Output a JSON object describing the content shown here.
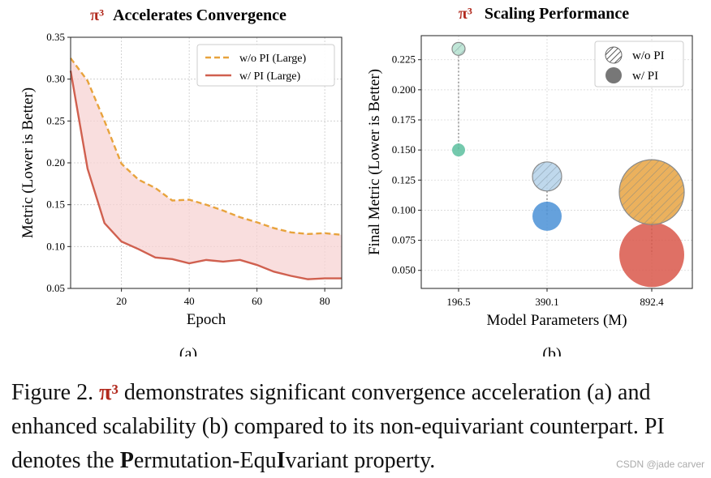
{
  "panel_a": {
    "title_pi": "π³",
    "title_text": "Accelerates Convergence",
    "sub_label": "(a)"
  },
  "panel_b": {
    "title_pi": "π³",
    "title_text": "Scaling Performance",
    "sub_label": "(b)"
  },
  "caption": {
    "fig": "Figure 2.",
    "pi": "π³",
    "t1": " demonstrates significant convergence acceleration (a) and enhanced scalability (b) compared to its non-equivariant counterpart. PI denotes the ",
    "b1": "P",
    "t2": "ermutation-Equ",
    "b2": "I",
    "t3": "variant property."
  },
  "watermark": "CSDN @jade carver",
  "colors": {
    "title_accent": "#b22a1e",
    "orange": "#e8a33d",
    "red": "#d0604f",
    "fill": "#f7d3d3",
    "teal": "#5cbf9f",
    "blue": "#4a90d6",
    "light_blue": "#b8d4ea",
    "bubble_orange": "#e9a94b",
    "bubble_red": "#d9574a"
  },
  "chart_data": [
    {
      "type": "line",
      "title": "π³ Accelerates Convergence",
      "xlabel": "Epoch",
      "ylabel": "Metric (Lower is Better)",
      "xlim": [
        5,
        85
      ],
      "ylim": [
        0.05,
        0.35
      ],
      "xticks": [
        20,
        40,
        60,
        80
      ],
      "yticks": [
        0.05,
        0.1,
        0.15,
        0.2,
        0.25,
        0.3,
        0.35
      ],
      "grid": true,
      "legend_position": "top-right",
      "series": [
        {
          "name": "w/o PI (Large)",
          "style": "dashed",
          "color": "#e8a33d",
          "x": [
            5,
            10,
            15,
            20,
            25,
            30,
            35,
            40,
            45,
            50,
            55,
            60,
            65,
            70,
            75,
            80,
            85
          ],
          "y": [
            0.325,
            0.298,
            0.25,
            0.199,
            0.18,
            0.17,
            0.155,
            0.156,
            0.15,
            0.143,
            0.135,
            0.129,
            0.122,
            0.117,
            0.115,
            0.116,
            0.114
          ]
        },
        {
          "name": "w/ PI (Large)",
          "style": "solid",
          "color": "#d0604f",
          "x": [
            5,
            10,
            15,
            20,
            25,
            30,
            35,
            40,
            45,
            50,
            55,
            60,
            65,
            70,
            75,
            80,
            85
          ],
          "y": [
            0.31,
            0.193,
            0.128,
            0.106,
            0.097,
            0.087,
            0.085,
            0.08,
            0.084,
            0.082,
            0.084,
            0.078,
            0.07,
            0.065,
            0.061,
            0.062,
            0.062
          ]
        }
      ]
    },
    {
      "type": "scatter",
      "title": "π³ Scaling Performance",
      "xlabel": "Model Parameters (M)",
      "ylabel": "Final Metric (Lower is Better)",
      "categories": [
        "196.5",
        "390.1",
        "892.4"
      ],
      "ylim": [
        0.035,
        0.245
      ],
      "yticks": [
        0.05,
        0.075,
        0.1,
        0.125,
        0.15,
        0.175,
        0.2,
        0.225
      ],
      "grid": true,
      "legend_position": "top-right",
      "legend": [
        {
          "label": "w/o PI",
          "style": "hatched"
        },
        {
          "label": "w/ PI",
          "style": "solid"
        }
      ],
      "series": [
        {
          "name": "w/o PI",
          "hatched": true,
          "values": [
            0.234,
            0.128,
            0.115
          ]
        },
        {
          "name": "w/ PI",
          "hatched": false,
          "values": [
            0.15,
            0.095,
            0.063
          ]
        }
      ],
      "point_colors": [
        "#5cbf9f",
        "#4a90d6",
        "#d9574a"
      ],
      "wo_colors": [
        "#b9e3d3",
        "#b8d4ea",
        "#e9a94b"
      ]
    }
  ]
}
